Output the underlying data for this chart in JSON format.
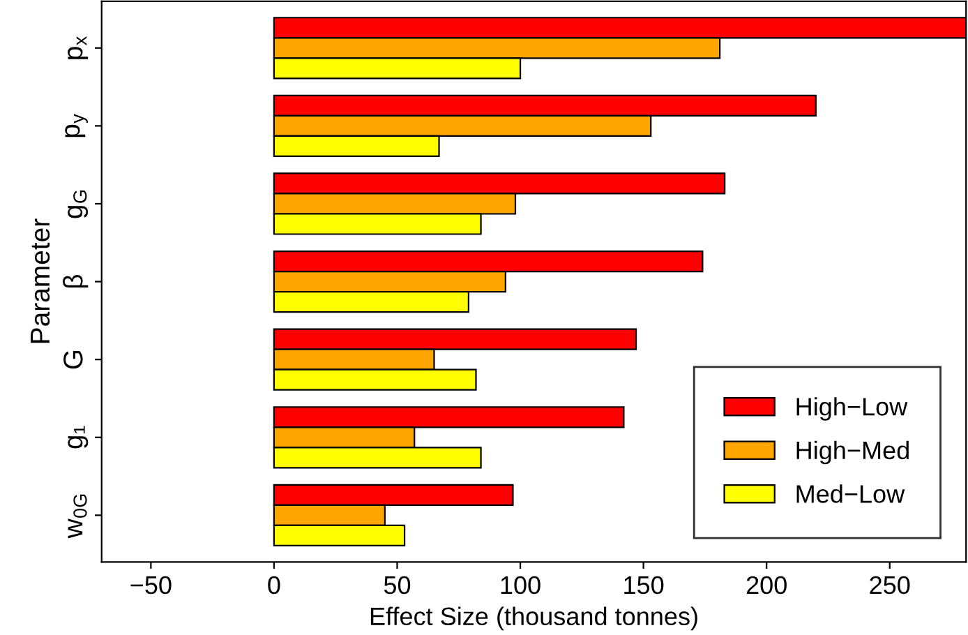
{
  "chart_data": {
    "type": "bar",
    "orientation": "horizontal",
    "ylabel": "Parameter",
    "xlabel": "Effect Size (thousand tonnes)",
    "categories": [
      "p$_{x}$",
      "p$_{y}$",
      "g$_{G}$",
      "β",
      "G",
      "g₁",
      "w$_{0G}$"
    ],
    "series": [
      {
        "name": "High−Low",
        "color": "#ff0000",
        "values": [
          281,
          220,
          183,
          174,
          147,
          142,
          97
        ]
      },
      {
        "name": "High−Med",
        "color": "#ffa500",
        "values": [
          181,
          153,
          98,
          94,
          65,
          57,
          45
        ]
      },
      {
        "name": "Med−Low",
        "color": "#ffff00",
        "values": [
          100,
          67,
          84,
          79,
          82,
          84,
          53
        ]
      }
    ],
    "xlim": [
      -70,
      281
    ],
    "xticks": [
      {
        "value": -50,
        "label": "−50"
      },
      0,
      50,
      100,
      150,
      200,
      250
    ],
    "legend": "bottom right",
    "grid": false
  }
}
